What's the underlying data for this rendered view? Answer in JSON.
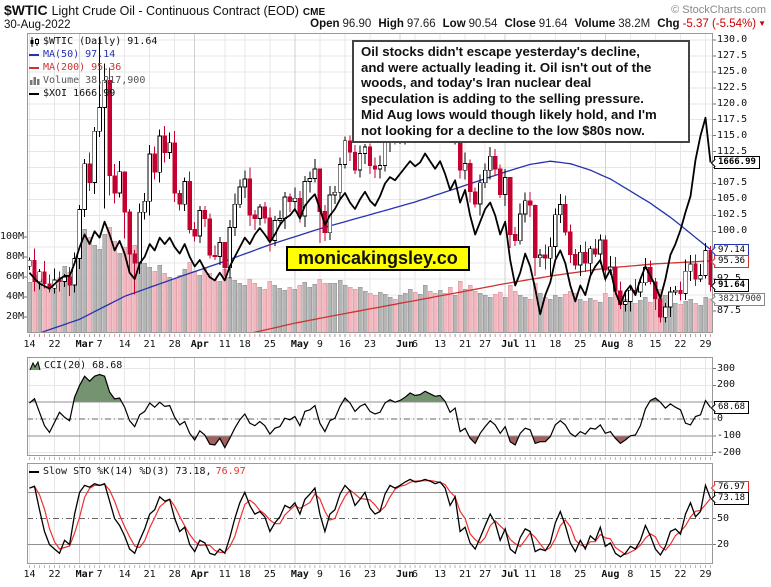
{
  "header": {
    "symbol": "$WTIC",
    "title": "Light Crude Oil - Continuous Contract (EOD)",
    "exchange": "CME",
    "copyright": "© StockCharts.com",
    "date": "30-Aug-2022",
    "quote": [
      {
        "label": "Open",
        "value": "96.90"
      },
      {
        "label": "High",
        "value": "97.66"
      },
      {
        "label": "Low",
        "value": "90.54"
      },
      {
        "label": "Close",
        "value": "91.64"
      },
      {
        "label": "Volume",
        "value": "38.2M"
      },
      {
        "label": "Chg",
        "value": "-5.37 (-5.54%)",
        "color": "#cc0000",
        "arrow": "▼"
      }
    ]
  },
  "legend": {
    "wtic": "$WTIC (Daily) 91.64",
    "ma50": "MA(50) 97.14",
    "ma200": "MA(200) 95.36",
    "volume": "Volume 38,217,900",
    "xoi": "$XOI 1666.99"
  },
  "annotation": "Oil stocks didn't escape yesterday's decline,\nand were actually leading it. Oil isn't out of the\nwoods, and today's Iran nuclear deal\nspeculation is adding to the selling pressure.\nMid Aug lows would though likely hold, and I'm\nnot looking for a decline to the low $80s now.",
  "watermark": "monicakingsley.co",
  "cci_legend": "CCI(20) 68.68",
  "sto_legend_black": "Slow STO %K(14) %D(3) 73.18,",
  "sto_legend_red": "76.97",
  "pills": {
    "xoi": "1666.99",
    "ma50": "97.14",
    "ma200": "95.36",
    "close": "91.64",
    "volume": "38217900",
    "cci": "68.68",
    "sto_k": "73.18",
    "sto_d": "76.97"
  },
  "colors": {
    "up": "#ffffff",
    "down": "#c40030",
    "outline": "#000000",
    "ma50": "#2433b0",
    "ma200": "#cc3333",
    "xoi": "#000000",
    "vol_up": "#b5b5b5",
    "vol_up_edge": "#8e8e8e",
    "vol_down": "#f3b8bf",
    "vol_down_edge": "#d98f98",
    "grid": "#e7e7e7",
    "grid_month": "#d2d2d2",
    "frame": "#999999",
    "cci_line": "#000000",
    "cci_fill_hi": "#74936f",
    "cci_fill_lo": "#a2605f",
    "sto_k": "#000000",
    "sto_d": "#f03030",
    "level": "#909090",
    "zero": "#666666",
    "red": "#cc0000",
    "tick_up": "#9a9a9a",
    "tick_down": "#dda0a8"
  },
  "chart_data": {
    "type": "candlestick",
    "n": 137,
    "x_ticks": [
      [
        "14",
        0
      ],
      [
        "22",
        5
      ],
      [
        "Mar",
        10
      ],
      [
        "7",
        14
      ],
      [
        "14",
        19
      ],
      [
        "21",
        24
      ],
      [
        "28",
        29
      ],
      [
        "Apr",
        33
      ],
      [
        "11",
        39
      ],
      [
        "18",
        43
      ],
      [
        "25",
        48
      ],
      [
        "May",
        53
      ],
      [
        "9",
        58
      ],
      [
        "16",
        63
      ],
      [
        "23",
        68
      ],
      [
        "Jun",
        74
      ],
      [
        "6",
        77
      ],
      [
        "13",
        82
      ],
      [
        "21",
        87
      ],
      [
        "27",
        91
      ],
      [
        "Jul",
        95
      ],
      [
        "11",
        100
      ],
      [
        "18",
        105
      ],
      [
        "25",
        110
      ],
      [
        "Aug",
        115
      ],
      [
        "8",
        120
      ],
      [
        "15",
        125
      ],
      [
        "22",
        130
      ],
      [
        "29",
        135
      ]
    ],
    "months": [
      "Mar",
      "Apr",
      "May",
      "Jun",
      "Jul",
      "Aug"
    ],
    "price_axis": {
      "min": 87.5,
      "max": 130.0,
      "step": 2.5,
      "hidden_ticks": [
        110.0,
        97.5,
        95.0,
        90.0
      ]
    },
    "volume_axis": {
      "labels": [
        "100M",
        "80M",
        "60M",
        "40M",
        "20M"
      ],
      "values": [
        100,
        80,
        60,
        40,
        20
      ]
    },
    "ohlc_last": {
      "open": 96.9,
      "high": 97.66,
      "low": 90.54,
      "close": 91.64,
      "volume_m": 38.2
    },
    "close": [
      95.46,
      92.07,
      93.66,
      91.76,
      91.07,
      92.35,
      92.1,
      92.81,
      91.59,
      95.72,
      103.41,
      110.6,
      107.67,
      115.68,
      119.4,
      123.7,
      108.7,
      106.02,
      109.33,
      103.01,
      96.44,
      95.04,
      102.98,
      104.7,
      112.12,
      109.27,
      114.93,
      112.34,
      113.9,
      105.96,
      104.24,
      107.82,
      100.28,
      99.27,
      103.28,
      101.96,
      96.23,
      96.03,
      98.26,
      94.29,
      100.6,
      104.25,
      106.95,
      108.21,
      102.56,
      102.02,
      103.79,
      102.07,
      98.54,
      101.7,
      102.02,
      105.36,
      104.69,
      105.17,
      102.41,
      107.81,
      108.26,
      109.77,
      103.09,
      99.76,
      105.71,
      106.13,
      110.49,
      114.2,
      112.4,
      109.59,
      112.21,
      113.23,
      110.29,
      109.77,
      110.33,
      114.09,
      115.07,
      114.67,
      115.26,
      116.87,
      118.87,
      118.5,
      119.41,
      122.11,
      121.51,
      120.67,
      120.93,
      118.93,
      115.31,
      117.59,
      109.56,
      110.65,
      106.19,
      104.27,
      107.62,
      109.57,
      111.76,
      109.78,
      105.76,
      108.43,
      99.5,
      98.53,
      102.73,
      104.79,
      104.09,
      95.84,
      96.3,
      95.78,
      97.59,
      102.6,
      104.22,
      99.88,
      96.35,
      94.7,
      96.7,
      94.98,
      97.26,
      96.42,
      98.62,
      93.89,
      94.42,
      90.66,
      88.54,
      89.01,
      90.76,
      90.5,
      91.93,
      94.34,
      92.09,
      89.41,
      86.53,
      88.11,
      90.5,
      90.77,
      90.23,
      93.74,
      94.89,
      92.52,
      93.06,
      97.01,
      91.64
    ],
    "volume_m": [
      55,
      62,
      58,
      50,
      48,
      52,
      60,
      71,
      65,
      78,
      95,
      108,
      100,
      92,
      88,
      103,
      110,
      96,
      84,
      90,
      86,
      92,
      78,
      74,
      70,
      66,
      72,
      64,
      60,
      58,
      62,
      68,
      75,
      66,
      62,
      70,
      64,
      58,
      56,
      68,
      60,
      57,
      54,
      52,
      58,
      54,
      50,
      48,
      56,
      52,
      49,
      47,
      50,
      48,
      52,
      55,
      50,
      53,
      58,
      54,
      54,
      54,
      57,
      52,
      50,
      48,
      50,
      46,
      44,
      42,
      45,
      43,
      40,
      38,
      42,
      44,
      48,
      45,
      43,
      52,
      46,
      44,
      47,
      44,
      50,
      42,
      56,
      48,
      52,
      46,
      44,
      42,
      40,
      43,
      45,
      40,
      52,
      46,
      42,
      40,
      38,
      54,
      44,
      40,
      38,
      42,
      40,
      43,
      46,
      44,
      38,
      36,
      39,
      37,
      35,
      44,
      40,
      46,
      42,
      38,
      36,
      34,
      37,
      40,
      35,
      38,
      48,
      42,
      36,
      34,
      33,
      36,
      38,
      34,
      32,
      40,
      38.2
    ],
    "wick_overrides": {
      "14": [
        130.5,
        114.8
      ],
      "15": [
        126.3,
        103.6
      ],
      "16": [
        125.7,
        105.6
      ],
      "19": [
        107.5,
        98.9
      ],
      "20": [
        103.5,
        93.5
      ],
      "21": [
        97.1,
        90.1
      ],
      "24": [
        113.5,
        102.5
      ],
      "39": [
        98.0,
        92.9
      ],
      "58": [
        104.5,
        98.2
      ],
      "79": [
        123.2,
        120.0
      ],
      "86": [
        117.8,
        108.3
      ],
      "96": [
        103.0,
        97.4
      ],
      "101": [
        104.2,
        93.0
      ],
      "104": [
        99.0,
        93.0
      ],
      "126": [
        89.8,
        85.7
      ],
      "136": [
        97.66,
        90.54
      ]
    },
    "ma50_anchors": [
      [
        0,
        83.5
      ],
      [
        10,
        86.2
      ],
      [
        19,
        89.8
      ],
      [
        29,
        92.6
      ],
      [
        39,
        95.3
      ],
      [
        48,
        97.9
      ],
      [
        58,
        100.4
      ],
      [
        68,
        102.6
      ],
      [
        77,
        104.6
      ],
      [
        87,
        107.2
      ],
      [
        95,
        109.3
      ],
      [
        100,
        110.5
      ],
      [
        104,
        111.0
      ],
      [
        108,
        110.6
      ],
      [
        112,
        109.6
      ],
      [
        116,
        108.2
      ],
      [
        120,
        106.3
      ],
      [
        124,
        104.4
      ],
      [
        128,
        102.2
      ],
      [
        131,
        100.3
      ],
      [
        134,
        98.4
      ],
      [
        136,
        97.14
      ]
    ],
    "ma200_anchors": [
      [
        0,
        77.5
      ],
      [
        20,
        80.2
      ],
      [
        33,
        82.0
      ],
      [
        43,
        83.8
      ],
      [
        53,
        85.6
      ],
      [
        63,
        87.1
      ],
      [
        74,
        88.7
      ],
      [
        87,
        90.6
      ],
      [
        95,
        91.8
      ],
      [
        105,
        93.1
      ],
      [
        115,
        94.2
      ],
      [
        125,
        94.9
      ],
      [
        136,
        95.36
      ]
    ],
    "xoi_equiv": [
      93.5,
      92.6,
      91.8,
      91.4,
      91.0,
      91.7,
      92.5,
      93.0,
      93.0,
      95.0,
      97.5,
      99.5,
      98.0,
      100.0,
      99.0,
      101.5,
      99.5,
      97.0,
      98.5,
      96.5,
      93.5,
      92.5,
      95.0,
      96.0,
      98.0,
      97.0,
      99.0,
      98.0,
      99.0,
      97.5,
      96.5,
      98.0,
      96.0,
      94.5,
      95.5,
      94.0,
      92.8,
      92.3,
      93.5,
      92.3,
      94.5,
      96.0,
      97.5,
      99.0,
      98.0,
      99.5,
      100.5,
      99.5,
      98.3,
      99.5,
      101.0,
      102.0,
      102.5,
      103.5,
      102.0,
      104.0,
      105.0,
      105.8,
      103.5,
      101.0,
      102.5,
      103.5,
      105.0,
      106.0,
      104.5,
      103.5,
      105.0,
      106.2,
      104.8,
      104.0,
      105.5,
      107.5,
      108.5,
      108.0,
      109.0,
      110.0,
      111.0,
      110.2,
      110.8,
      112.2,
      111.0,
      109.8,
      111.0,
      109.0,
      106.5,
      108.0,
      104.5,
      106.5,
      102.5,
      99.5,
      101.5,
      103.5,
      104.5,
      102.5,
      99.5,
      101.5,
      95.5,
      91.5,
      93.5,
      96.5,
      94.5,
      91.0,
      87.0,
      90.0,
      92.0,
      95.5,
      97.0,
      95.0,
      91.5,
      89.0,
      91.5,
      90.0,
      93.0,
      94.5,
      95.5,
      92.5,
      94.0,
      90.5,
      88.5,
      90.5,
      91.5,
      90.0,
      92.5,
      94.5,
      93.0,
      91.5,
      89.5,
      92.5,
      96.3,
      98.0,
      100.2,
      103.0,
      105.5,
      111.2,
      115.0,
      117.8,
      110.8
    ],
    "cci": {
      "ticks": [
        300,
        200,
        100,
        0,
        -100,
        -200
      ],
      "upper": 100,
      "lower": -100,
      "last": 68.68,
      "values": [
        95,
        120,
        40,
        -40,
        -80,
        -20,
        40,
        10,
        -10,
        130,
        200,
        255,
        225,
        255,
        265,
        255,
        160,
        120,
        125,
        70,
        -10,
        -45,
        25,
        45,
        95,
        70,
        100,
        75,
        80,
        10,
        -35,
        -15,
        -85,
        -125,
        -70,
        -95,
        -150,
        -155,
        -115,
        -170,
        -115,
        -55,
        -5,
        30,
        -25,
        -40,
        -15,
        -40,
        -90,
        -55,
        -45,
        5,
        -5,
        15,
        -40,
        45,
        55,
        80,
        -25,
        -75,
        -10,
        5,
        75,
        125,
        95,
        45,
        75,
        90,
        45,
        30,
        40,
        95,
        115,
        100,
        110,
        130,
        155,
        140,
        145,
        165,
        150,
        135,
        140,
        105,
        40,
        65,
        -75,
        -55,
        -115,
        -145,
        -85,
        -45,
        -10,
        -35,
        -85,
        -45,
        -135,
        -155,
        -85,
        -55,
        -65,
        -145,
        -135,
        -135,
        -105,
        -35,
        -10,
        -35,
        -85,
        -105,
        -75,
        -90,
        -55,
        -60,
        -35,
        -85,
        -75,
        -115,
        -145,
        -125,
        -100,
        -95,
        -40,
        60,
        110,
        125,
        100,
        65,
        90,
        70,
        55,
        -25,
        -35,
        15,
        25,
        110,
        68.68
      ]
    },
    "sto": {
      "ticks": [
        80,
        50,
        20
      ],
      "k_last": 73.18,
      "d_last": 76.97,
      "k": [
        85,
        87,
        60,
        35,
        20,
        15,
        10,
        25,
        20,
        55,
        80,
        88,
        86,
        90,
        88,
        90,
        70,
        50,
        42,
        30,
        15,
        10,
        25,
        38,
        55,
        60,
        75,
        70,
        72,
        50,
        35,
        40,
        20,
        12,
        25,
        22,
        10,
        8,
        15,
        10,
        28,
        50,
        68,
        80,
        65,
        55,
        58,
        52,
        35,
        45,
        52,
        65,
        62,
        68,
        55,
        72,
        78,
        85,
        55,
        35,
        55,
        60,
        78,
        88,
        82,
        65,
        72,
        80,
        62,
        55,
        58,
        78,
        88,
        85,
        88,
        92,
        95,
        92,
        93,
        95,
        93,
        90,
        92,
        85,
        65,
        75,
        35,
        40,
        22,
        15,
        28,
        42,
        55,
        45,
        25,
        38,
        15,
        10,
        28,
        38,
        35,
        12,
        15,
        13,
        22,
        45,
        58,
        42,
        22,
        12,
        25,
        15,
        30,
        25,
        40,
        18,
        22,
        10,
        6,
        10,
        18,
        15,
        25,
        42,
        30,
        15,
        8,
        18,
        35,
        38,
        32,
        55,
        68,
        52,
        58,
        88,
        73.18
      ]
    }
  }
}
